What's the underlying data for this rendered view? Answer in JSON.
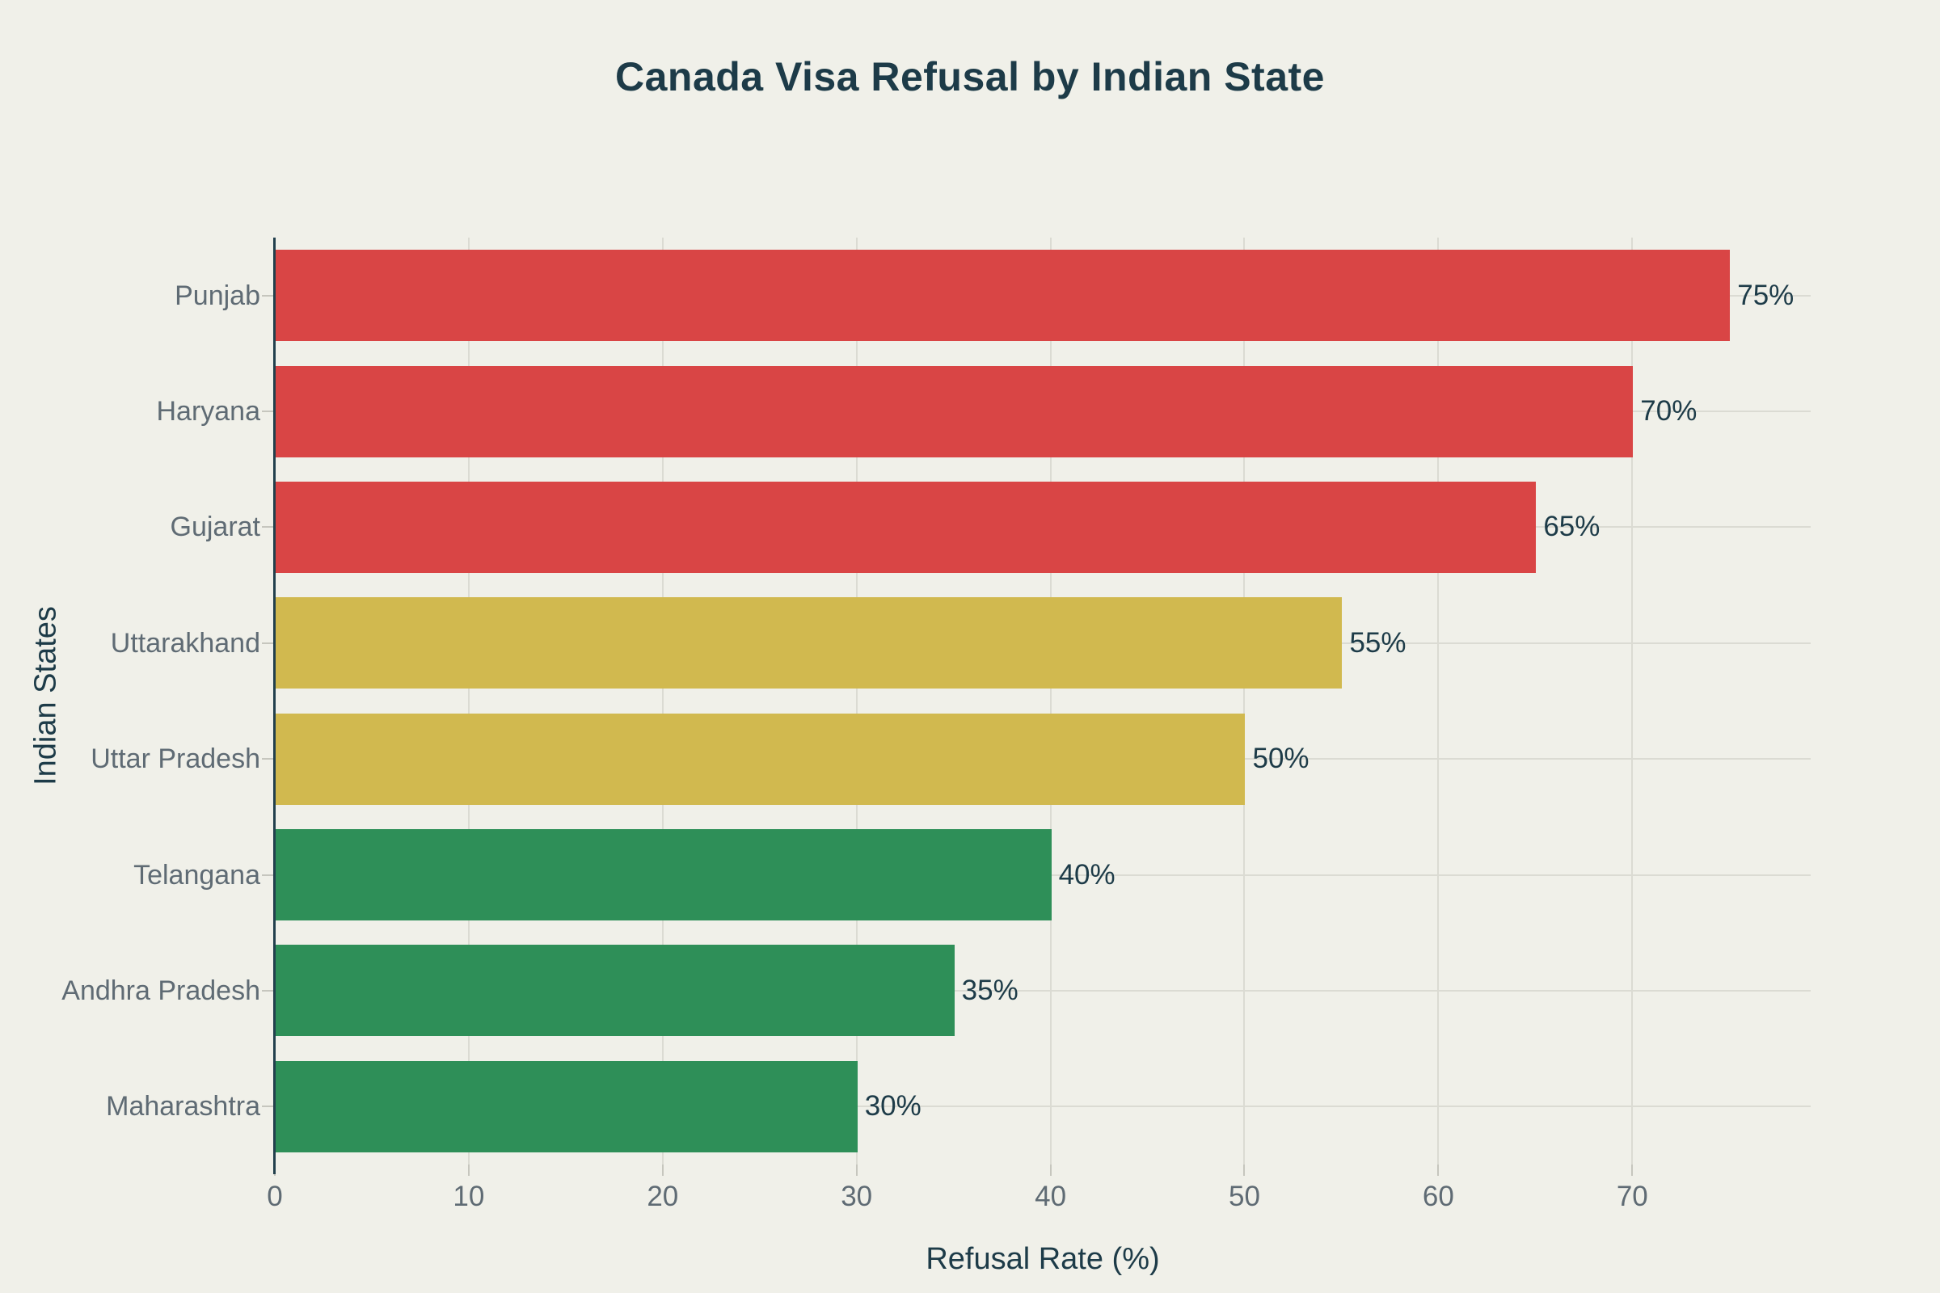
{
  "colors": {
    "background": "#f0f0e9",
    "high_refusal_red": "#d94545",
    "medium_refusal_yellow": "#d1b94f",
    "low_refusal_green": "#2e8f58",
    "text_dark": "#1d3b48",
    "text_gray": "#5f6b74",
    "gridline": "#dbdbd3",
    "axis_line": "#22404d"
  },
  "chart_data": {
    "type": "bar",
    "orientation": "horizontal",
    "title": "Canada Visa Refusal by Indian State",
    "xlabel": "Refusal Rate (%)",
    "ylabel": "Indian States",
    "categories": [
      "Punjab",
      "Haryana",
      "Gujarat",
      "Uttarakhand",
      "Uttar Pradesh",
      "Telangana",
      "Andhra Pradesh",
      "Maharashtra"
    ],
    "values": [
      75,
      70,
      65,
      55,
      50,
      40,
      35,
      30
    ],
    "value_labels": [
      "75%",
      "70%",
      "65%",
      "55%",
      "50%",
      "40%",
      "35%",
      "30%"
    ],
    "bar_colors": [
      "#d94545",
      "#d94545",
      "#d94545",
      "#d1b94f",
      "#d1b94f",
      "#2e8f58",
      "#2e8f58",
      "#2e8f58"
    ],
    "xticks": [
      0,
      10,
      20,
      30,
      40,
      50,
      60,
      70
    ],
    "xlim": [
      0,
      79.2
    ],
    "grid": true,
    "legend": false
  }
}
